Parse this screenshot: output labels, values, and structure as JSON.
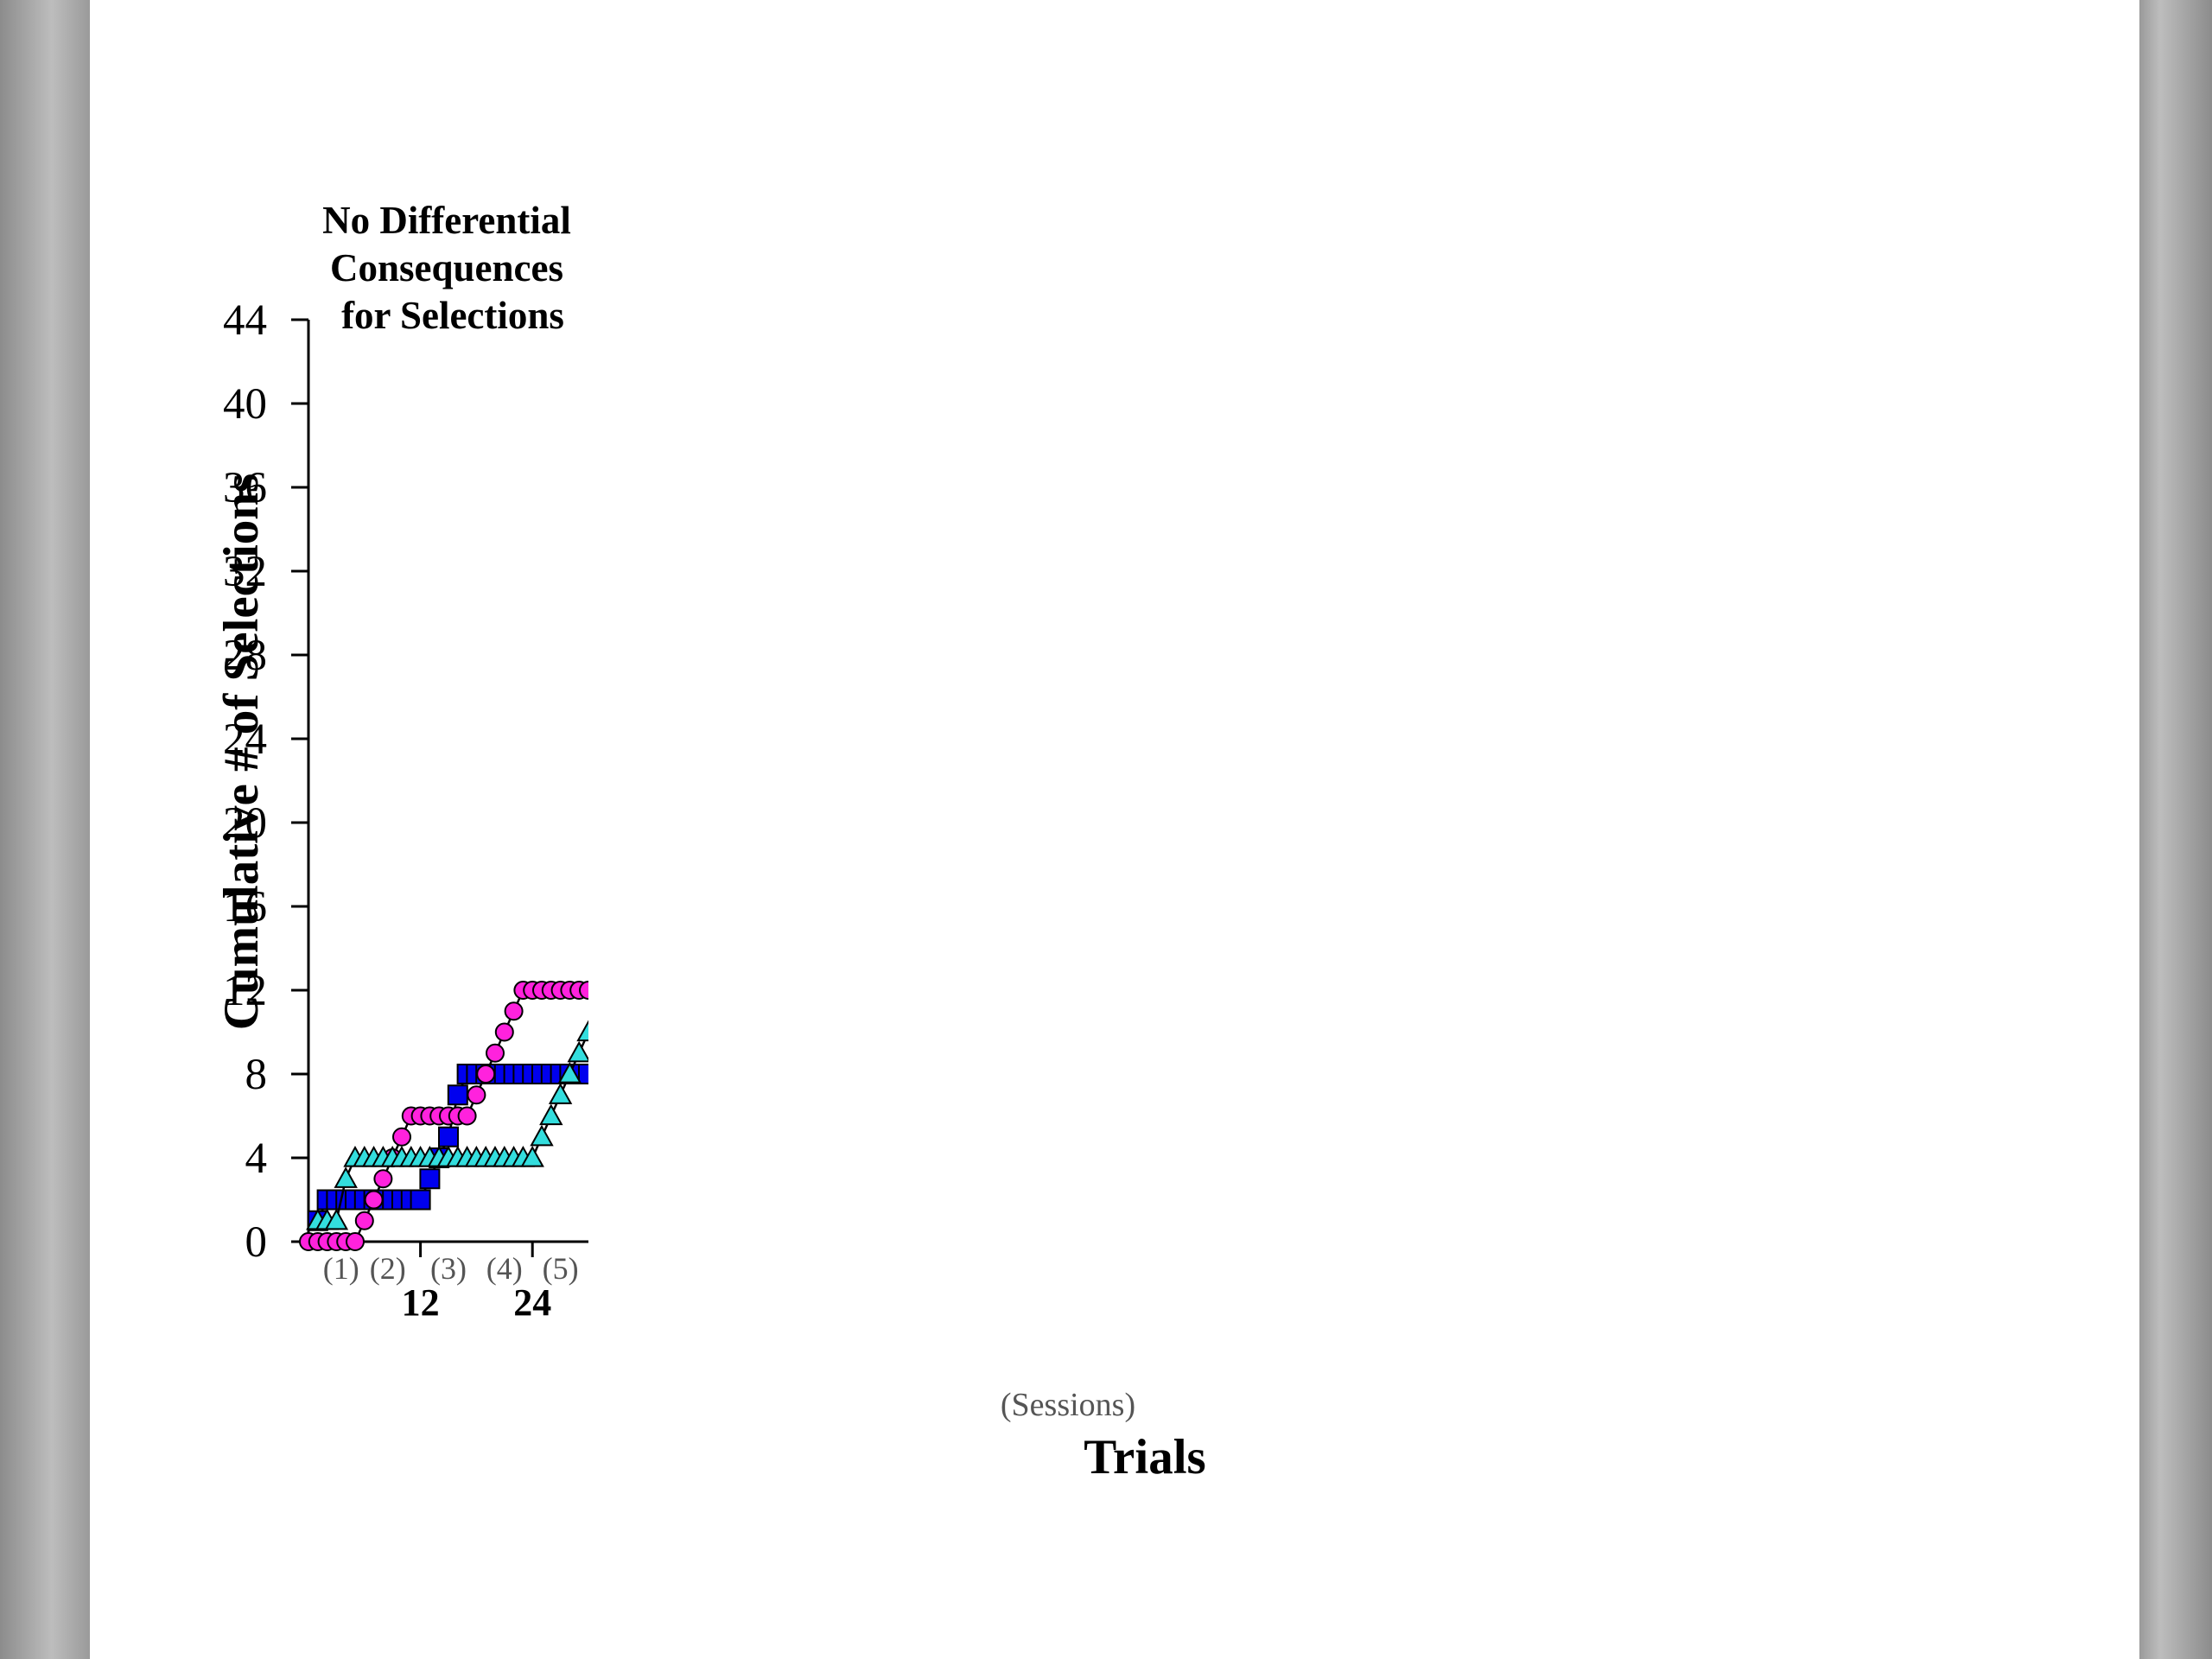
{
  "chart_data": {
    "type": "line",
    "title_lines": [
      "No Differential",
      "Consequences",
      "for Selections"
    ],
    "ylabel": "Cumulative # of Selections",
    "xlabel": "Trials",
    "sessions_caption": "(Sessions)",
    "ylim": [
      0,
      44
    ],
    "yticks": [
      0,
      4,
      8,
      12,
      16,
      20,
      24,
      28,
      32,
      36,
      40,
      44
    ],
    "xlim": [
      0,
      30
    ],
    "xticks_major": [
      {
        "value": 12,
        "label": "12"
      },
      {
        "value": 24,
        "label": "24"
      }
    ],
    "session_labels": [
      {
        "x": 3.5,
        "label": "(1)"
      },
      {
        "x": 8.5,
        "label": "(2)"
      },
      {
        "x": 15,
        "label": "(3)"
      },
      {
        "x": 21,
        "label": "(4)"
      },
      {
        "x": 27,
        "label": "(5)"
      }
    ],
    "grid": false,
    "series": [
      {
        "marker": "square",
        "color": "#0000ee",
        "x": [
          1,
          2,
          3,
          4,
          5,
          6,
          7,
          8,
          9,
          10,
          11,
          12,
          13,
          14,
          15,
          16,
          17,
          18,
          19,
          20,
          21,
          22,
          23,
          24,
          25,
          26,
          27,
          28,
          29,
          30
        ],
        "values": [
          1,
          2,
          2,
          2,
          2,
          2,
          2,
          2,
          2,
          2,
          2,
          2,
          3,
          4,
          5,
          7,
          8,
          8,
          8,
          8,
          8,
          8,
          8,
          8,
          8,
          8,
          8,
          8,
          8,
          8
        ]
      },
      {
        "marker": "circle",
        "color": "#ff22dd",
        "x": [
          0,
          1,
          2,
          3,
          4,
          5,
          6,
          7,
          8,
          9,
          10,
          11,
          12,
          13,
          14,
          15,
          16,
          17,
          18,
          19,
          20,
          21,
          22,
          23,
          24,
          25,
          26,
          27,
          28,
          29,
          30
        ],
        "values": [
          0,
          0,
          0,
          0,
          0,
          0,
          1,
          2,
          3,
          4,
          5,
          6,
          6,
          6,
          6,
          6,
          6,
          6,
          7,
          8,
          9,
          10,
          11,
          12,
          12,
          12,
          12,
          12,
          12,
          12,
          12
        ]
      },
      {
        "marker": "triangle",
        "color": "#33dddd",
        "x": [
          1,
          2,
          3,
          4,
          5,
          6,
          7,
          8,
          9,
          10,
          11,
          12,
          13,
          14,
          15,
          16,
          17,
          18,
          19,
          20,
          21,
          22,
          23,
          24,
          25,
          26,
          27,
          28,
          29,
          30
        ],
        "values": [
          1,
          1,
          1,
          3,
          4,
          4,
          4,
          4,
          4,
          4,
          4,
          4,
          4,
          4,
          4,
          4,
          4,
          4,
          4,
          4,
          4,
          4,
          4,
          4,
          5,
          6,
          7,
          8,
          9,
          10
        ]
      }
    ]
  }
}
